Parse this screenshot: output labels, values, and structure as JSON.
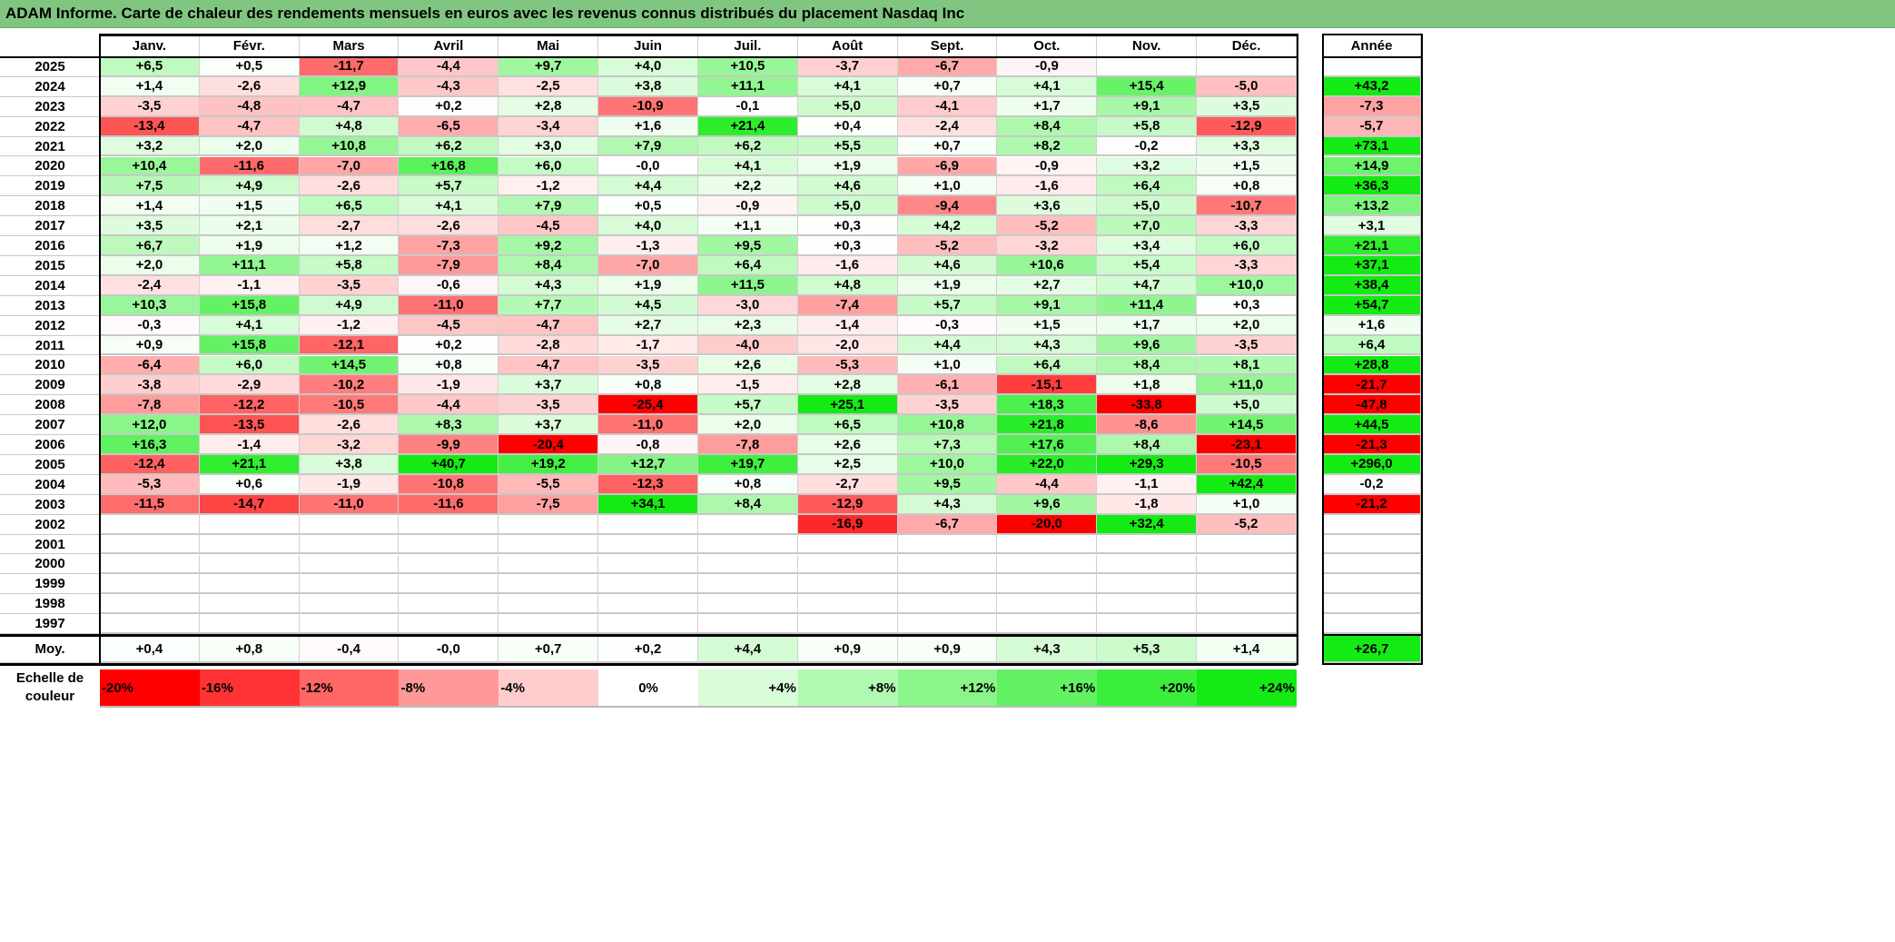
{
  "title": "ADAM Informe. Carte de chaleur des rendements mensuels en euros avec les revenus connus distribués du placement Nasdaq Inc",
  "colors": {
    "title_bar": "#80c680",
    "negative_max": "#ff0000",
    "neutral": "#ffffff",
    "positive_max": "#14eb14"
  },
  "chart_data": {
    "type": "heatmap",
    "title": "ADAM Informe. Carte de chaleur des rendements mensuels en euros avec les revenus connus distribués du placement Nasdaq Inc",
    "months": [
      "Janv.",
      "Févr.",
      "Mars",
      "Avril",
      "Mai",
      "Juin",
      "Juil.",
      "Août",
      "Sept.",
      "Oct.",
      "Nov.",
      "Déc."
    ],
    "year_header": "Année",
    "rows": [
      {
        "year": "2025",
        "values": [
          "+6,5",
          "+0,5",
          "-11,7",
          "-4,4",
          "+9,7",
          "+4,0",
          "+10,5",
          "-3,7",
          "-6,7",
          "-0,9",
          "",
          ""
        ],
        "total": ""
      },
      {
        "year": "2024",
        "values": [
          "+1,4",
          "-2,6",
          "+12,9",
          "-4,3",
          "-2,5",
          "+3,8",
          "+11,1",
          "+4,1",
          "+0,7",
          "+4,1",
          "+15,4",
          "-5,0"
        ],
        "total": "+43,2"
      },
      {
        "year": "2023",
        "values": [
          "-3,5",
          "-4,8",
          "-4,7",
          "+0,2",
          "+2,8",
          "-10,9",
          "-0,1",
          "+5,0",
          "-4,1",
          "+1,7",
          "+9,1",
          "+3,5"
        ],
        "total": "-7,3"
      },
      {
        "year": "2022",
        "values": [
          "-13,4",
          "-4,7",
          "+4,8",
          "-6,5",
          "-3,4",
          "+1,6",
          "+21,4",
          "+0,4",
          "-2,4",
          "+8,4",
          "+5,8",
          "-12,9"
        ],
        "total": "-5,7"
      },
      {
        "year": "2021",
        "values": [
          "+3,2",
          "+2,0",
          "+10,8",
          "+6,2",
          "+3,0",
          "+7,9",
          "+6,2",
          "+5,5",
          "+0,7",
          "+8,2",
          "-0,2",
          "+3,3"
        ],
        "total": "+73,1"
      },
      {
        "year": "2020",
        "values": [
          "+10,4",
          "-11,6",
          "-7,0",
          "+16,8",
          "+6,0",
          "-0,0",
          "+4,1",
          "+1,9",
          "-6,9",
          "-0,9",
          "+3,2",
          "+1,5"
        ],
        "total": "+14,9"
      },
      {
        "year": "2019",
        "values": [
          "+7,5",
          "+4,9",
          "-2,6",
          "+5,7",
          "-1,2",
          "+4,4",
          "+2,2",
          "+4,6",
          "+1,0",
          "-1,6",
          "+6,4",
          "+0,8"
        ],
        "total": "+36,3"
      },
      {
        "year": "2018",
        "values": [
          "+1,4",
          "+1,5",
          "+6,5",
          "+4,1",
          "+7,9",
          "+0,5",
          "-0,9",
          "+5,0",
          "-9,4",
          "+3,6",
          "+5,0",
          "-10,7"
        ],
        "total": "+13,2"
      },
      {
        "year": "2017",
        "values": [
          "+3,5",
          "+2,1",
          "-2,7",
          "-2,6",
          "-4,5",
          "+4,0",
          "+1,1",
          "+0,3",
          "+4,2",
          "-5,2",
          "+7,0",
          "-3,3"
        ],
        "total": "+3,1"
      },
      {
        "year": "2016",
        "values": [
          "+6,7",
          "+1,9",
          "+1,2",
          "-7,3",
          "+9,2",
          "-1,3",
          "+9,5",
          "+0,3",
          "-5,2",
          "-3,2",
          "+3,4",
          "+6,0"
        ],
        "total": "+21,1"
      },
      {
        "year": "2015",
        "values": [
          "+2,0",
          "+11,1",
          "+5,8",
          "-7,9",
          "+8,4",
          "-7,0",
          "+6,4",
          "-1,6",
          "+4,6",
          "+10,6",
          "+5,4",
          "-3,3"
        ],
        "total": "+37,1"
      },
      {
        "year": "2014",
        "values": [
          "-2,4",
          "-1,1",
          "-3,5",
          "-0,6",
          "+4,3",
          "+1,9",
          "+11,5",
          "+4,8",
          "+1,9",
          "+2,7",
          "+4,7",
          "+10,0"
        ],
        "total": "+38,4"
      },
      {
        "year": "2013",
        "values": [
          "+10,3",
          "+15,8",
          "+4,9",
          "-11,0",
          "+7,7",
          "+4,5",
          "-3,0",
          "-7,4",
          "+5,7",
          "+9,1",
          "+11,4",
          "+0,3"
        ],
        "total": "+54,7"
      },
      {
        "year": "2012",
        "values": [
          "-0,3",
          "+4,1",
          "-1,2",
          "-4,5",
          "-4,7",
          "+2,7",
          "+2,3",
          "-1,4",
          "-0,3",
          "+1,5",
          "+1,7",
          "+2,0"
        ],
        "total": "+1,6"
      },
      {
        "year": "2011",
        "values": [
          "+0,9",
          "+15,8",
          "-12,1",
          "+0,2",
          "-2,8",
          "-1,7",
          "-4,0",
          "-2,0",
          "+4,4",
          "+4,3",
          "+9,6",
          "-3,5"
        ],
        "total": "+6,4"
      },
      {
        "year": "2010",
        "values": [
          "-6,4",
          "+6,0",
          "+14,5",
          "+0,8",
          "-4,7",
          "-3,5",
          "+2,6",
          "-5,3",
          "+1,0",
          "+6,4",
          "+8,4",
          "+8,1"
        ],
        "total": "+28,8"
      },
      {
        "year": "2009",
        "values": [
          "-3,8",
          "-2,9",
          "-10,2",
          "-1,9",
          "+3,7",
          "+0,8",
          "-1,5",
          "+2,8",
          "-6,1",
          "-15,1",
          "+1,8",
          "+11,0"
        ],
        "total": "-21,7"
      },
      {
        "year": "2008",
        "values": [
          "-7,8",
          "-12,2",
          "-10,5",
          "-4,4",
          "-3,5",
          "-25,4",
          "+5,7",
          "+25,1",
          "-3,5",
          "+18,3",
          "-33,8",
          "+5,0"
        ],
        "total": "-47,8"
      },
      {
        "year": "2007",
        "values": [
          "+12,0",
          "-13,5",
          "-2,6",
          "+8,3",
          "+3,7",
          "-11,0",
          "+2,0",
          "+6,5",
          "+10,8",
          "+21,8",
          "-8,6",
          "+14,5"
        ],
        "total": "+44,5"
      },
      {
        "year": "2006",
        "values": [
          "+16,3",
          "-1,4",
          "-3,2",
          "-9,9",
          "-20,4",
          "-0,8",
          "-7,8",
          "+2,6",
          "+7,3",
          "+17,6",
          "+8,4",
          "-23,1"
        ],
        "total": "-21,3"
      },
      {
        "year": "2005",
        "values": [
          "-12,4",
          "+21,1",
          "+3,8",
          "+40,7",
          "+19,2",
          "+12,7",
          "+19,7",
          "+2,5",
          "+10,0",
          "+22,0",
          "+29,3",
          "-10,5"
        ],
        "total": "+296,0"
      },
      {
        "year": "2004",
        "values": [
          "-5,3",
          "+0,6",
          "-1,9",
          "-10,8",
          "-5,5",
          "-12,3",
          "+0,8",
          "-2,7",
          "+9,5",
          "-4,4",
          "-1,1",
          "+42,4"
        ],
        "total": "-0,2"
      },
      {
        "year": "2003",
        "values": [
          "-11,5",
          "-14,7",
          "-11,0",
          "-11,6",
          "-7,5",
          "+34,1",
          "+8,4",
          "-12,9",
          "+4,3",
          "+9,6",
          "-1,8",
          "+1,0"
        ],
        "total": "-21,2"
      },
      {
        "year": "2002",
        "values": [
          "",
          "",
          "",
          "",
          "",
          "",
          "",
          "-16,9",
          "-6,7",
          "-20,0",
          "+32,4",
          "-5,2"
        ],
        "total": ""
      },
      {
        "year": "2001",
        "values": [
          "",
          "",
          "",
          "",
          "",
          "",
          "",
          "",
          "",
          "",
          "",
          ""
        ],
        "total": ""
      },
      {
        "year": "2000",
        "values": [
          "",
          "",
          "",
          "",
          "",
          "",
          "",
          "",
          "",
          "",
          "",
          ""
        ],
        "total": ""
      },
      {
        "year": "1999",
        "values": [
          "",
          "",
          "",
          "",
          "",
          "",
          "",
          "",
          "",
          "",
          "",
          ""
        ],
        "total": ""
      },
      {
        "year": "1998",
        "values": [
          "",
          "",
          "",
          "",
          "",
          "",
          "",
          "",
          "",
          "",
          "",
          ""
        ],
        "total": ""
      },
      {
        "year": "1997",
        "values": [
          "",
          "",
          "",
          "",
          "",
          "",
          "",
          "",
          "",
          "",
          "",
          ""
        ],
        "total": ""
      }
    ],
    "average": {
      "label": "Moy.",
      "values": [
        "+0,4",
        "+0,8",
        "-0,4",
        "-0,0",
        "+0,7",
        "+0,2",
        "+4,4",
        "+0,9",
        "+0,9",
        "+4,3",
        "+5,3",
        "+1,4"
      ],
      "total": "+26,7"
    },
    "scale": {
      "label": "Echelle de couleur",
      "steps": [
        "-20%",
        "-16%",
        "-12%",
        "-8%",
        "-4%",
        "0%",
        "+4%",
        "+8%",
        "+12%",
        "+16%",
        "+20%",
        "+24%"
      ],
      "range": [
        -20,
        24
      ]
    }
  }
}
